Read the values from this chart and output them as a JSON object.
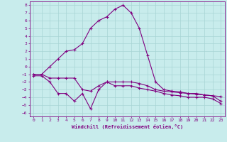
{
  "xlabel": "Windchill (Refroidissement éolien,°C)",
  "background_color": "#c8ecec",
  "grid_color": "#a8d4d4",
  "line_color": "#800080",
  "x_ticks": [
    0,
    1,
    2,
    3,
    4,
    5,
    6,
    7,
    8,
    9,
    10,
    11,
    12,
    13,
    14,
    15,
    16,
    17,
    18,
    19,
    20,
    21,
    22,
    23
  ],
  "y_ticks": [
    8,
    7,
    6,
    5,
    4,
    3,
    2,
    1,
    0,
    -1,
    -2,
    -3,
    -4,
    -5,
    -6
  ],
  "ylim": [
    -6.5,
    8.5
  ],
  "xlim": [
    -0.5,
    23.5
  ],
  "line1_x": [
    0,
    1,
    2,
    3,
    4,
    5,
    6,
    7,
    8,
    9,
    10,
    11,
    12,
    13,
    14,
    15,
    16,
    17,
    18,
    19,
    20,
    21,
    22,
    23
  ],
  "line1_y": [
    -1,
    -1,
    0,
    1,
    2,
    2.2,
    3,
    5,
    6,
    6.5,
    7.5,
    8,
    7,
    5,
    1.5,
    -2,
    -3,
    -3.2,
    -3.3,
    -3.5,
    -3.5,
    -3.7,
    -3.8,
    -3.9
  ],
  "line2_x": [
    0,
    1,
    2,
    3,
    4,
    5,
    6,
    7,
    8,
    9,
    10,
    11,
    12,
    13,
    14,
    15,
    16,
    17,
    18,
    19,
    20,
    21,
    22,
    23
  ],
  "line2_y": [
    -1,
    -1,
    -1.5,
    -1.5,
    -1.5,
    -1.5,
    -3,
    -3.2,
    -2.5,
    -2,
    -2,
    -2,
    -2,
    -2.2,
    -2.5,
    -3,
    -3.2,
    -3.3,
    -3.4,
    -3.5,
    -3.6,
    -3.7,
    -3.8,
    -4.5
  ],
  "line3_x": [
    0,
    1,
    2,
    3,
    4,
    5,
    6,
    7,
    8,
    9,
    10,
    11,
    12,
    13,
    14,
    15,
    16,
    17,
    18,
    19,
    20,
    21,
    22,
    23
  ],
  "line3_y": [
    -1.2,
    -1.2,
    -2,
    -3.5,
    -3.5,
    -4.5,
    -3.5,
    -5.5,
    -3,
    -2,
    -2.5,
    -2.5,
    -2.5,
    -2.8,
    -3,
    -3.2,
    -3.5,
    -3.7,
    -3.8,
    -4,
    -4,
    -4,
    -4.2,
    -4.8
  ]
}
